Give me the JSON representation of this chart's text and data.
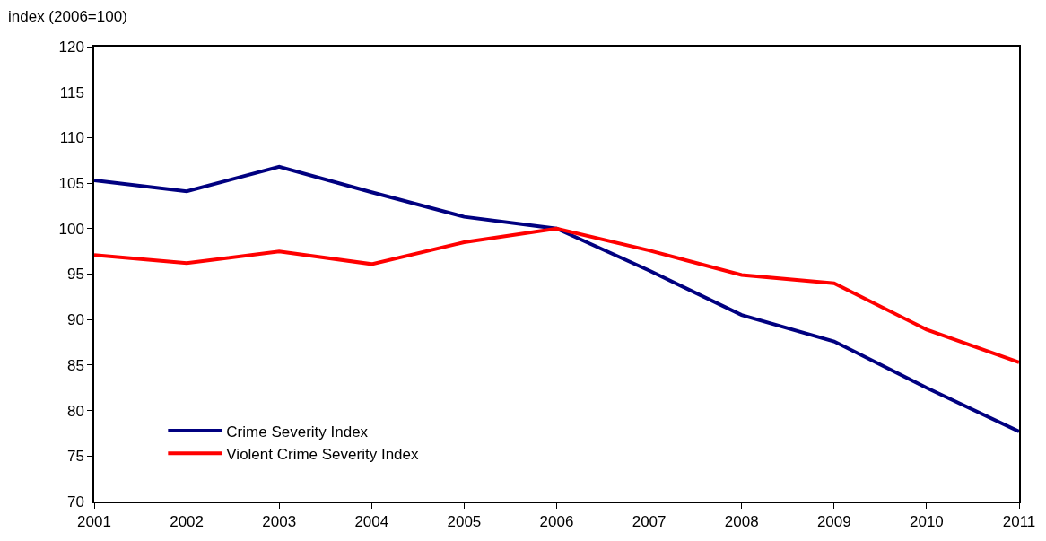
{
  "chart_data": {
    "type": "line",
    "ylabel": "index (2006=100)",
    "x": [
      2001,
      2002,
      2003,
      2004,
      2005,
      2006,
      2007,
      2008,
      2009,
      2010,
      2011
    ],
    "xlim": [
      2001,
      2011
    ],
    "xticks": [
      2001,
      2002,
      2003,
      2004,
      2005,
      2006,
      2007,
      2008,
      2009,
      2010,
      2011
    ],
    "ylim": [
      70,
      120
    ],
    "yticks": [
      70,
      75,
      80,
      85,
      90,
      95,
      100,
      105,
      110,
      115,
      120
    ],
    "legend": "bottom left",
    "marker": "none",
    "line_style": "solid",
    "series": [
      {
        "name": "Crime Severity Index",
        "color": "#000080",
        "values": [
          105.3,
          104.1,
          106.8,
          104.0,
          101.3,
          100.0,
          95.4,
          90.5,
          87.6,
          82.5,
          77.7
        ]
      },
      {
        "name": "Violent Crime Severity Index",
        "color": "#ff0000",
        "values": [
          97.1,
          96.2,
          97.5,
          96.1,
          98.5,
          100.0,
          97.6,
          94.9,
          94.0,
          88.9,
          85.3
        ]
      }
    ]
  }
}
